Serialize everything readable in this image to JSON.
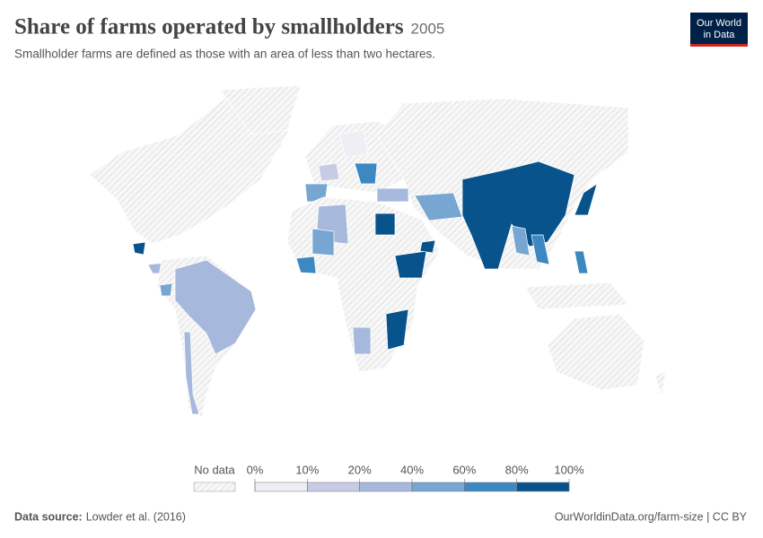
{
  "header": {
    "title": "Share of farms operated by smallholders",
    "year": "2005",
    "subtitle": "Smallholder farms are defined as those with an area of less than two hectares."
  },
  "logo": {
    "line1": "Our World",
    "line2": "in Data"
  },
  "legend": {
    "no_data_label": "No data",
    "ticks": [
      {
        "value": 0,
        "label": "0%"
      },
      {
        "value": 10,
        "label": "10%"
      },
      {
        "value": 20,
        "label": "20%"
      },
      {
        "value": 40,
        "label": "40%"
      },
      {
        "value": 60,
        "label": "60%"
      },
      {
        "value": 80,
        "label": "80%"
      },
      {
        "value": 100,
        "label": "100%"
      }
    ],
    "colors": [
      "#eeeef5",
      "#c8cbe4",
      "#a6b9dc",
      "#76a6d1",
      "#3c88c1",
      "#08538b"
    ]
  },
  "footer": {
    "source_label": "Data source:",
    "source": "Lowder et al. (2016)",
    "url": "OurWorldinData.org/farm-size | CC BY"
  }
}
